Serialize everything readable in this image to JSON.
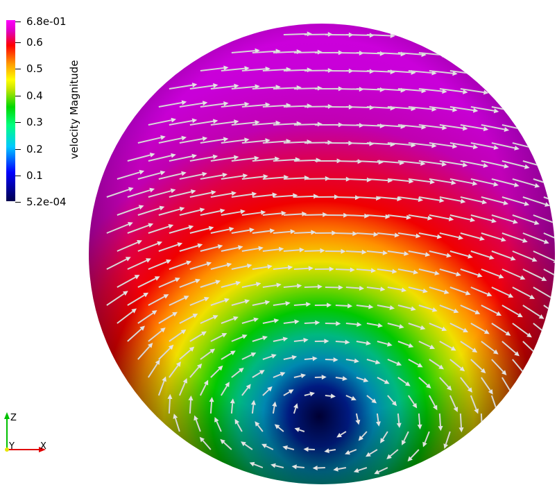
{
  "legend": {
    "title": "velocity Magnitude",
    "ticks": [
      "6.8e-01",
      "0.6",
      "0.5",
      "0.4",
      "0.3",
      "0.2",
      "0.1",
      "5.2e-04"
    ]
  },
  "axes": {
    "z": "Z",
    "y": "Y",
    "x": "X",
    "colors": {
      "x": "#e00000",
      "y": "#e6e600",
      "z": "#00c000"
    }
  }
}
